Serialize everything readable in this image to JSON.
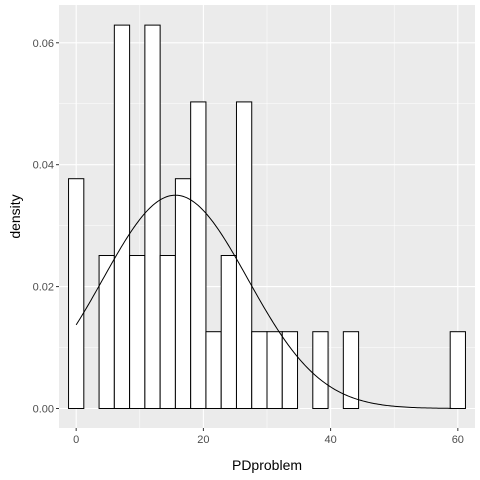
{
  "chart_data": {
    "type": "bar",
    "subtype": "histogram-with-density-curve",
    "xlabel": "PDproblem",
    "ylabel": "density",
    "xlim": [
      -2.7,
      62.7
    ],
    "ylim": [
      -0.0032,
      0.0662
    ],
    "x_ticks": [
      0,
      20,
      40,
      60
    ],
    "x_tick_labels": [
      "0",
      "20",
      "40",
      "60"
    ],
    "y_ticks": [
      0,
      0.02,
      0.04,
      0.06
    ],
    "y_tick_labels": [
      "0.00",
      "0.02",
      "0.04",
      "0.06"
    ],
    "bin_width": 2.4,
    "bins": [
      {
        "x0": -1.2,
        "x1": 1.2,
        "density": 0.0377
      },
      {
        "x0": 1.2,
        "x1": 3.6,
        "density": 0.0
      },
      {
        "x0": 3.6,
        "x1": 6.0,
        "density": 0.0251
      },
      {
        "x0": 6.0,
        "x1": 8.4,
        "density": 0.0629
      },
      {
        "x0": 8.4,
        "x1": 10.8,
        "density": 0.0251
      },
      {
        "x0": 10.8,
        "x1": 13.2,
        "density": 0.0629
      },
      {
        "x0": 13.2,
        "x1": 15.6,
        "density": 0.0251
      },
      {
        "x0": 15.6,
        "x1": 18.0,
        "density": 0.0377
      },
      {
        "x0": 18.0,
        "x1": 20.4,
        "density": 0.0503
      },
      {
        "x0": 20.4,
        "x1": 22.8,
        "density": 0.0126
      },
      {
        "x0": 22.8,
        "x1": 25.2,
        "density": 0.0251
      },
      {
        "x0": 25.2,
        "x1": 27.6,
        "density": 0.0503
      },
      {
        "x0": 27.6,
        "x1": 30.0,
        "density": 0.0126
      },
      {
        "x0": 30.0,
        "x1": 32.4,
        "density": 0.0126
      },
      {
        "x0": 32.4,
        "x1": 34.8,
        "density": 0.0126
      },
      {
        "x0": 34.8,
        "x1": 37.2,
        "density": 0.0
      },
      {
        "x0": 37.2,
        "x1": 39.6,
        "density": 0.0126
      },
      {
        "x0": 39.6,
        "x1": 42.0,
        "density": 0.0
      },
      {
        "x0": 42.0,
        "x1": 44.4,
        "density": 0.0126
      },
      {
        "x0": 44.4,
        "x1": 46.8,
        "density": 0.0
      },
      {
        "x0": 46.8,
        "x1": 49.2,
        "density": 0.0
      },
      {
        "x0": 49.2,
        "x1": 51.6,
        "density": 0.0
      },
      {
        "x0": 51.6,
        "x1": 54.0,
        "density": 0.0
      },
      {
        "x0": 54.0,
        "x1": 56.4,
        "density": 0.0
      },
      {
        "x0": 56.4,
        "x1": 58.8,
        "density": 0.0
      },
      {
        "x0": 58.8,
        "x1": 61.2,
        "density": 0.0126
      }
    ],
    "density_curve": {
      "distribution": "normal",
      "mean": 15.6,
      "sd": 11.4,
      "x_range": [
        0,
        59
      ]
    },
    "colors": {
      "panel_background": "#ebebeb",
      "grid": "#ffffff",
      "bar_fill": "#ffffff",
      "bar_outline": "#000000",
      "curve": "#000000",
      "tick_label": "#4d4d4d",
      "tick_mark": "#333333"
    },
    "grid": true,
    "legend": "none"
  }
}
